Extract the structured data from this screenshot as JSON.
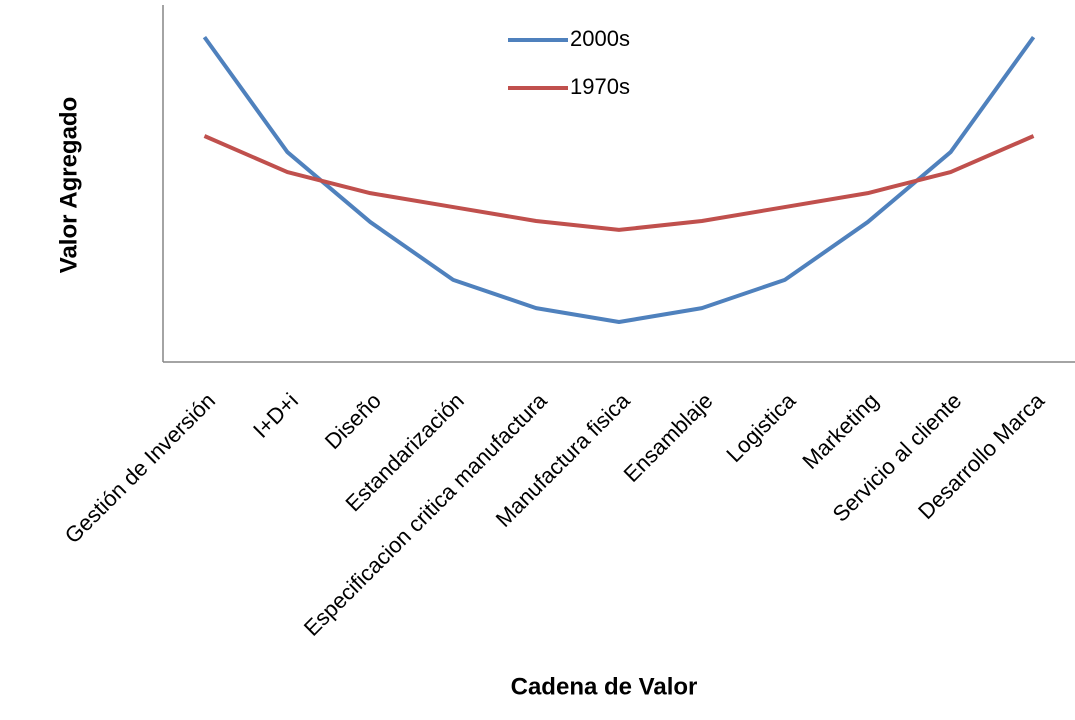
{
  "chart_data": {
    "type": "line",
    "x_label": "Cadena de Valor",
    "y_label": "Valor Agregado",
    "categories": [
      "Gestión de Inversión",
      "I+D+i",
      "Diseño",
      "Estandarización",
      "Especificacion critica manufactura",
      "Manufactura fisica",
      "Ensamblaje",
      "Logistica",
      "Marketing",
      "Servicio al cliente",
      "Desarrollo Marca"
    ],
    "series": [
      {
        "name": "2000s",
        "color": "#4f81bd",
        "values": [
          91,
          58.8,
          39.2,
          23,
          15.1,
          11.2,
          15.1,
          23,
          39.2,
          58.8,
          91
        ]
      },
      {
        "name": "1970s",
        "color": "#c0504d",
        "values": [
          63.3,
          53.2,
          47.3,
          43.4,
          39.5,
          37,
          39.5,
          43.4,
          47.3,
          53.2,
          63.3
        ]
      }
    ],
    "ylim": [
      0,
      100
    ],
    "legend": "top"
  }
}
